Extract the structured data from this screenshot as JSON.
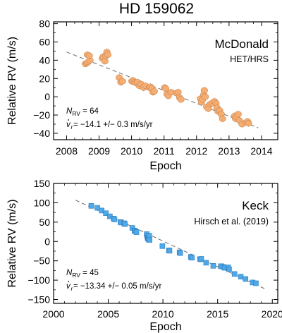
{
  "figure": {
    "title": "HD 159062"
  },
  "chart_data": [
    {
      "type": "scatter",
      "title": "McDonald",
      "subtitle": "HET/HRS",
      "xlabel": "Epoch",
      "ylabel": "Relative RV (m/s)",
      "xlim": [
        2007.6,
        2014.5
      ],
      "ylim": [
        -47,
        82
      ],
      "xticks": [
        "2008",
        "2009",
        "2010",
        "2011",
        "2012",
        "2013",
        "2014"
      ],
      "xtick_values": [
        2008,
        2009,
        2010,
        2011,
        2012,
        2013,
        2014
      ],
      "yticks": [
        "80",
        "60",
        "40",
        "20",
        "0",
        "−20",
        "−40"
      ],
      "ytick_values": [
        80,
        60,
        40,
        20,
        0,
        -20,
        -40
      ],
      "marker_color": "#f5ad72",
      "marker_edge": "#c98a55",
      "marker": "circle",
      "n_label": "N",
      "n_sub": "RV",
      "n_value": " = 64",
      "slope_text": " = −14.1 +/− 0.3 m/s/yr",
      "trend": {
        "x0": 2008.0,
        "y0": 49,
        "x1": 2013.9,
        "y1": -34
      },
      "series": [
        {
          "x": [
            2008.58,
            2008.62,
            2008.66,
            2008.72,
            2008.64,
            2008.7,
            2009.1,
            2009.13,
            2009.18,
            2009.21,
            2009.24,
            2009.27,
            2009.62,
            2009.67,
            2009.72,
            2010.01,
            2010.04,
            2010.09,
            2010.14,
            2010.18,
            2010.24,
            2010.29,
            2010.37,
            2010.43,
            2010.55,
            2010.58,
            2010.62,
            2010.66,
            2010.7,
            2011.02,
            2011.05,
            2011.09,
            2011.13,
            2011.22,
            2011.38,
            2011.43,
            2011.48,
            2011.52,
            2012.12,
            2012.15,
            2012.19,
            2012.22,
            2012.24,
            2012.27,
            2012.31,
            2012.36,
            2012.42,
            2012.48,
            2012.55,
            2012.6,
            2012.63,
            2012.66,
            2012.71,
            2012.76,
            2012.8,
            2013.17,
            2013.2,
            2013.24,
            2013.28,
            2013.32,
            2013.4,
            2013.53,
            2013.57,
            2013.6
          ],
          "y": [
            36,
            37,
            38,
            40,
            46,
            45,
            42,
            44,
            39,
            45,
            49,
            46,
            21,
            16,
            17,
            17,
            18,
            16,
            15,
            16,
            12,
            14,
            10,
            12,
            10,
            11,
            9,
            5,
            6,
            10,
            9,
            3,
            1,
            5,
            4,
            5,
            -1,
            -3,
            -2,
            -6,
            -3,
            2,
            7,
            0,
            -11,
            -13,
            -8,
            -7,
            -5,
            -7,
            -12,
            -16,
            -15,
            -19,
            -24,
            -21,
            -24,
            -22,
            -19,
            -26,
            -30,
            -28,
            -27,
            -29
          ]
        }
      ]
    },
    {
      "type": "scatter",
      "title": "Keck",
      "subtitle": "Hirsch et al. (2019)",
      "xlabel": "Epoch",
      "ylabel": "Relative RV (m/s)",
      "xlim": [
        2000,
        2020.5
      ],
      "ylim": [
        -160,
        150
      ],
      "xticks": [
        "2000",
        "2005",
        "2010",
        "2015",
        "2020"
      ],
      "xtick_values": [
        2000,
        2005,
        2010,
        2015,
        2020
      ],
      "yticks": [
        "150",
        "100",
        "50",
        "0",
        "−50",
        "−100",
        "−150"
      ],
      "ytick_values": [
        150,
        100,
        50,
        0,
        -50,
        -100,
        -150
      ],
      "marker_color": "#4fa8e8",
      "marker_edge": "#2e7fbf",
      "marker": "square",
      "n_label": "N",
      "n_sub": "RV",
      "n_value": " = 45",
      "slope_text": " = −13.34 +/− 0.05 m/s/yr",
      "trend": {
        "x0": 2002.0,
        "y0": 107,
        "x1": 2019.3,
        "y1": -122
      },
      "series": [
        {
          "x": [
            2003.45,
            2004.0,
            2004.4,
            2004.78,
            2005.15,
            2005.5,
            2005.57,
            2006.12,
            2006.18,
            2006.45,
            2006.52,
            2007.2,
            2007.4,
            2007.5,
            2007.58,
            2008.52,
            2008.56,
            2008.6,
            2008.63,
            2008.66,
            2008.7,
            2008.74,
            2008.78,
            2009.95,
            2010.55,
            2010.6,
            2011.52,
            2011.58,
            2012.55,
            2012.65,
            2013.4,
            2013.5,
            2013.95,
            2014.6,
            2015.3,
            2015.35,
            2015.55,
            2015.65,
            2015.97,
            2016.05,
            2016.55,
            2017.12,
            2017.55,
            2018.2,
            2018.5
          ],
          "y": [
            92,
            87,
            80,
            73,
            65,
            59,
            57,
            50,
            49,
            47,
            45,
            35,
            28,
            26,
            24,
            19,
            14,
            10,
            8,
            9,
            5,
            15,
            4,
            -12,
            -23,
            -24,
            -28,
            -30,
            -40,
            -42,
            -46,
            -45,
            -55,
            -63,
            -64,
            -64,
            -66,
            -68,
            -67,
            -72,
            -84,
            -91,
            -97,
            -106,
            -108
          ]
        }
      ]
    }
  ]
}
